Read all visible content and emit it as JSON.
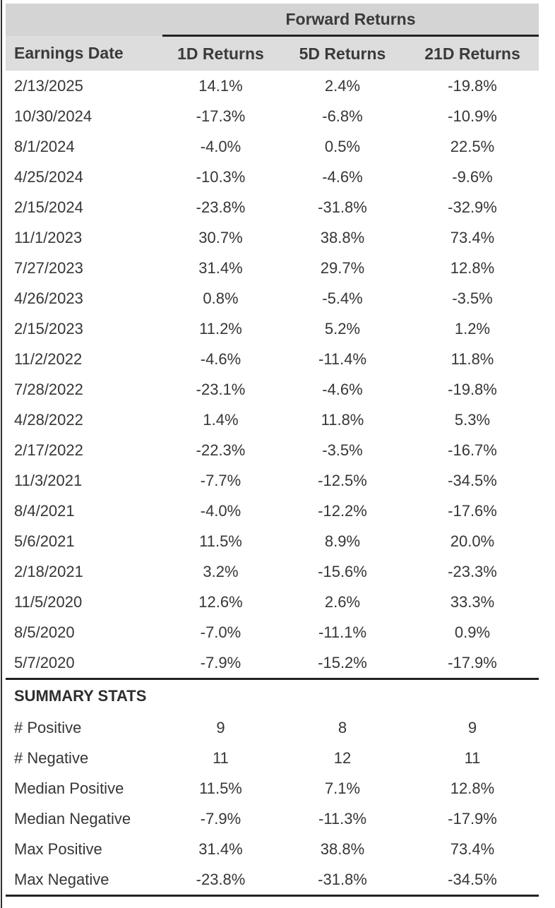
{
  "header": {
    "group_title": "Forward Returns",
    "columns": [
      "Earnings Date",
      "1D Returns",
      "5D Returns",
      "21D Returns"
    ]
  },
  "chart_data": {
    "type": "table",
    "title": "Forward Returns",
    "columns": [
      "Earnings Date",
      "1D Returns",
      "5D Returns",
      "21D Returns"
    ],
    "rows": [
      [
        "2/13/2025",
        "14.1%",
        "2.4%",
        "-19.8%"
      ],
      [
        "10/30/2024",
        "-17.3%",
        "-6.8%",
        "-10.9%"
      ],
      [
        "8/1/2024",
        "-4.0%",
        "0.5%",
        "22.5%"
      ],
      [
        "4/25/2024",
        "-10.3%",
        "-4.6%",
        "-9.6%"
      ],
      [
        "2/15/2024",
        "-23.8%",
        "-31.8%",
        "-32.9%"
      ],
      [
        "11/1/2023",
        "30.7%",
        "38.8%",
        "73.4%"
      ],
      [
        "7/27/2023",
        "31.4%",
        "29.7%",
        "12.8%"
      ],
      [
        "4/26/2023",
        "0.8%",
        "-5.4%",
        "-3.5%"
      ],
      [
        "2/15/2023",
        "11.2%",
        "5.2%",
        "1.2%"
      ],
      [
        "11/2/2022",
        "-4.6%",
        "-11.4%",
        "11.8%"
      ],
      [
        "7/28/2022",
        "-23.1%",
        "-4.6%",
        "-19.8%"
      ],
      [
        "4/28/2022",
        "1.4%",
        "11.8%",
        "5.3%"
      ],
      [
        "2/17/2022",
        "-22.3%",
        "-3.5%",
        "-16.7%"
      ],
      [
        "11/3/2021",
        "-7.7%",
        "-12.5%",
        "-34.5%"
      ],
      [
        "8/4/2021",
        "-4.0%",
        "-12.2%",
        "-17.6%"
      ],
      [
        "5/6/2021",
        "11.5%",
        "8.9%",
        "20.0%"
      ],
      [
        "2/18/2021",
        "3.2%",
        "-15.6%",
        "-23.3%"
      ],
      [
        "11/5/2020",
        "12.6%",
        "2.6%",
        "33.3%"
      ],
      [
        "8/5/2020",
        "-7.0%",
        "-11.1%",
        "0.9%"
      ],
      [
        "5/7/2020",
        "-7.9%",
        "-15.2%",
        "-17.9%"
      ]
    ],
    "summary": {
      "title": "SUMMARY STATS",
      "rows": [
        [
          "# Positive",
          "9",
          "8",
          "9"
        ],
        [
          "# Negative",
          "11",
          "12",
          "11"
        ],
        [
          "Median Positive",
          "11.5%",
          "7.1%",
          "12.8%"
        ],
        [
          "Median Negative",
          "-7.9%",
          "-11.3%",
          "-17.9%"
        ],
        [
          "Max Positive",
          "31.4%",
          "38.8%",
          "73.4%"
        ],
        [
          "Max Negative",
          "-23.8%",
          "-31.8%",
          "-34.5%"
        ]
      ]
    }
  },
  "colors": {
    "group_header_bg": "#d4d4d4",
    "column_header_bg": "#dddddd",
    "rule": "#222222",
    "text": "#363636"
  }
}
